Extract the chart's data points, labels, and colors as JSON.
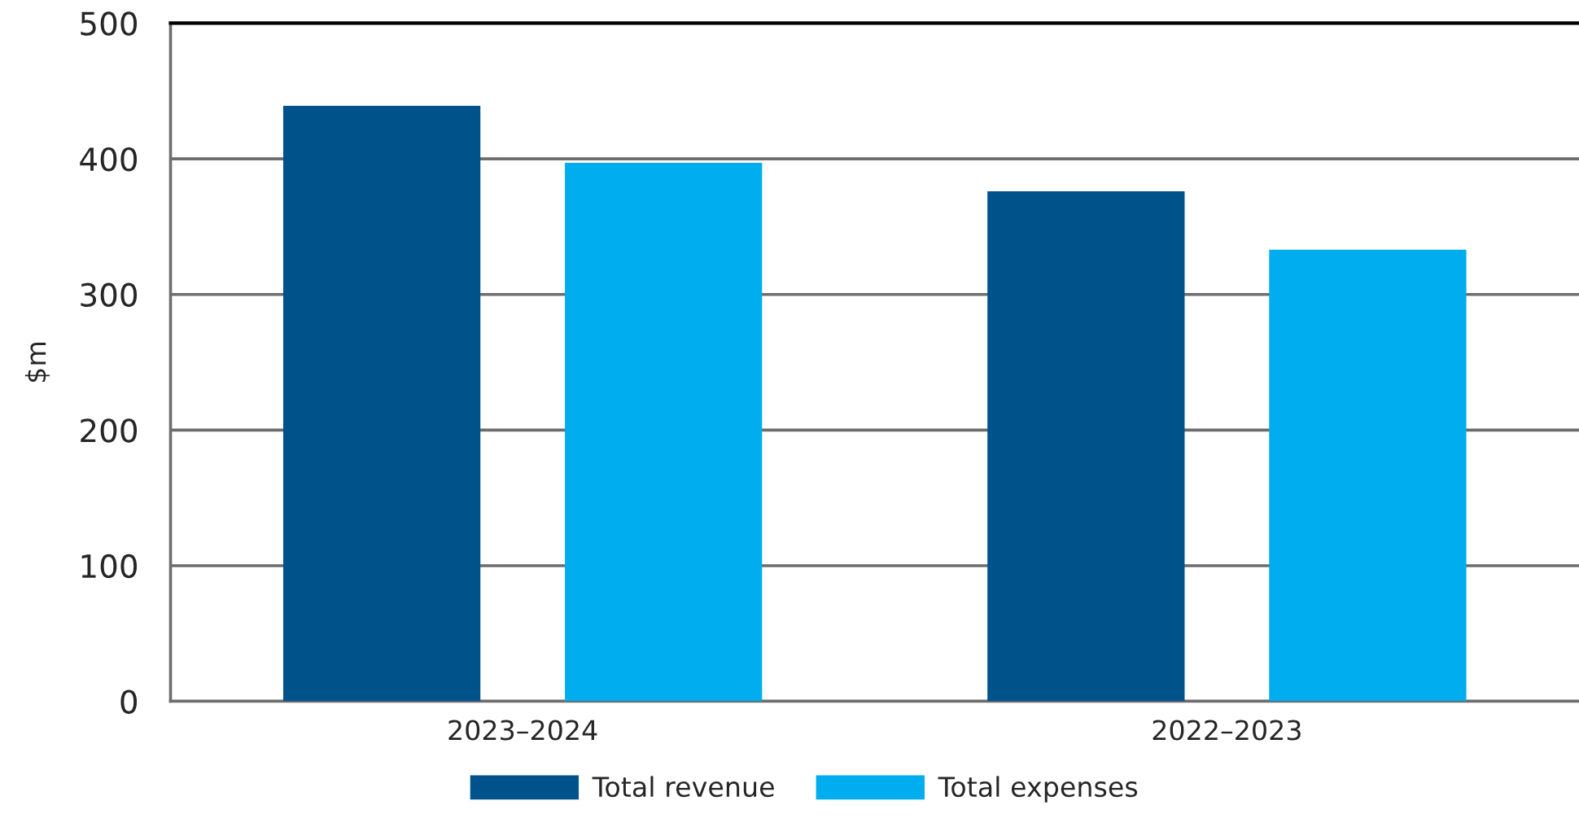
{
  "chart_data": {
    "type": "bar",
    "ylabel": "$m",
    "categories": [
      "2023–2024",
      "2022–2023"
    ],
    "series": [
      {
        "name": "Total revenue",
        "color": "#00528a",
        "values": [
          439,
          376
        ]
      },
      {
        "name": "Total expenses",
        "color": "#00adef",
        "values": [
          397,
          333
        ]
      }
    ],
    "ylim": [
      0,
      500
    ],
    "yticks": [
      0,
      100,
      200,
      300,
      400,
      500
    ],
    "grid": "y",
    "legend": "bottom"
  }
}
